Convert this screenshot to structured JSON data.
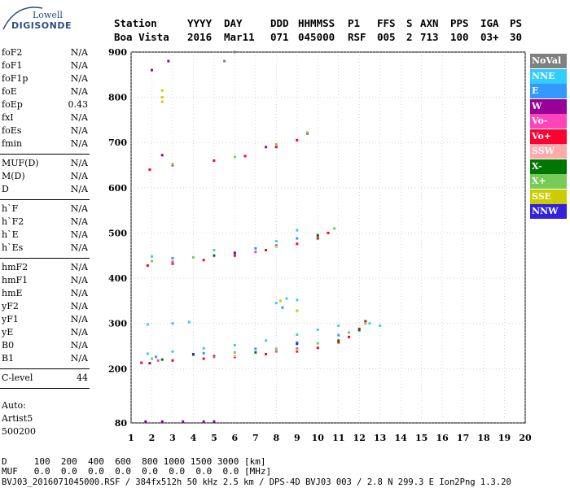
{
  "logo": {
    "line1": "Lowell",
    "line2": "DIGISONDE"
  },
  "header": {
    "row1": [
      "Station",
      "YYYY",
      "DAY",
      "DDD",
      "HHMMSS",
      "P1",
      "FFS",
      "S",
      "AXN",
      "PPS",
      "IGA",
      "PS"
    ],
    "row2": [
      "Boa Vista",
      "2016",
      "Mar11",
      "071",
      "045000",
      "RSF",
      "005",
      "2",
      "713",
      "100",
      "03+",
      "30"
    ]
  },
  "params": {
    "group1": [
      {
        "label": "foF2",
        "value": "N/A"
      },
      {
        "label": "foF1",
        "value": "N/A"
      },
      {
        "label": "foF1p",
        "value": "N/A"
      },
      {
        "label": "foE",
        "value": "N/A"
      },
      {
        "label": "foEp",
        "value": "0.43"
      },
      {
        "label": "fxI",
        "value": "N/A"
      },
      {
        "label": "foEs",
        "value": "N/A"
      },
      {
        "label": "fmin",
        "value": "N/A"
      }
    ],
    "group2": [
      {
        "label": "MUF(D)",
        "value": "N/A"
      },
      {
        "label": "M(D)",
        "value": "N/A"
      },
      {
        "label": "D",
        "value": "N/A"
      }
    ],
    "group3": [
      {
        "label": "h`F",
        "value": "N/A"
      },
      {
        "label": "h`F2",
        "value": "N/A"
      },
      {
        "label": "h`E",
        "value": "N/A"
      },
      {
        "label": "h`Es",
        "value": "N/A"
      }
    ],
    "group4": [
      {
        "label": "hmF2",
        "value": "N/A"
      },
      {
        "label": "hmF1",
        "value": "N/A"
      },
      {
        "label": "hmE",
        "value": "N/A"
      },
      {
        "label": "yF2",
        "value": "N/A"
      },
      {
        "label": "yF1",
        "value": "N/A"
      },
      {
        "label": "yE",
        "value": "N/A"
      },
      {
        "label": "B0",
        "value": "N/A"
      },
      {
        "label": "B1",
        "value": "N/A"
      }
    ],
    "group5": [
      {
        "label": "C-level",
        "value": "44"
      }
    ],
    "auto_lines": [
      "Auto:",
      "Artist5",
      "500200"
    ]
  },
  "legend": [
    {
      "label": "NoVal",
      "color": "#808080"
    },
    {
      "label": "NNE",
      "color": "#33ccff"
    },
    {
      "label": "E",
      "color": "#3399ff"
    },
    {
      "label": "W",
      "color": "#990099"
    },
    {
      "label": "Vo-",
      "color": "#ff44bb"
    },
    {
      "label": "Vo+",
      "color": "#ff0033"
    },
    {
      "label": "SSW",
      "color": "#ffaaaa"
    },
    {
      "label": "X-",
      "color": "#007700"
    },
    {
      "label": "X+",
      "color": "#77cc55"
    },
    {
      "label": "SSE",
      "color": "#cccc00"
    },
    {
      "label": "NNW",
      "color": "#3322dd"
    }
  ],
  "chart_data": {
    "type": "scatter",
    "xlim": [
      1,
      20
    ],
    "x_ticks": [
      1,
      2,
      3,
      4,
      5,
      6,
      7,
      8,
      9,
      10,
      11,
      12,
      13,
      14,
      15,
      16,
      17,
      18,
      19,
      20
    ],
    "ylim": [
      80,
      900
    ],
    "y_ticks": [
      80,
      200,
      300,
      400,
      500,
      600,
      700,
      800,
      900
    ],
    "grid": true,
    "series": [
      {
        "name": "Vo+",
        "points": [
          [
            1.5,
            213
          ],
          [
            3,
            218
          ],
          [
            4.5,
            222
          ],
          [
            6,
            226
          ],
          [
            7.5,
            232
          ],
          [
            9,
            238
          ],
          [
            10,
            246
          ],
          [
            11,
            258
          ],
          [
            11.5,
            270
          ],
          [
            12,
            288
          ],
          [
            12.3,
            305
          ],
          [
            1.8,
            428
          ],
          [
            3,
            432
          ],
          [
            4.5,
            440
          ],
          [
            6,
            450
          ],
          [
            7.5,
            462
          ],
          [
            9,
            476
          ],
          [
            10,
            488
          ],
          [
            10.5,
            500
          ],
          [
            1.9,
            640
          ],
          [
            3,
            650
          ],
          [
            5,
            660
          ],
          [
            6.5,
            670
          ],
          [
            8,
            690
          ],
          [
            9,
            705
          ],
          [
            9.5,
            720
          ]
        ]
      },
      {
        "name": "X+",
        "points": [
          [
            2,
            222
          ],
          [
            4,
            230
          ],
          [
            6,
            236
          ],
          [
            8,
            244
          ],
          [
            10,
            256
          ],
          [
            11.5,
            280
          ],
          [
            12.3,
            300
          ],
          [
            2,
            438
          ],
          [
            4,
            446
          ],
          [
            6,
            456
          ],
          [
            8,
            470
          ],
          [
            10,
            496
          ],
          [
            10.8,
            510
          ],
          [
            3,
            652
          ],
          [
            6,
            668
          ],
          [
            8,
            696
          ],
          [
            9.5,
            722
          ]
        ]
      },
      {
        "name": "X-",
        "points": [
          [
            2.5,
            220
          ],
          [
            5,
            228
          ],
          [
            7,
            236
          ],
          [
            9,
            244
          ],
          [
            11,
            262
          ],
          [
            12,
            285
          ],
          [
            5,
            450
          ],
          [
            8,
            472
          ],
          [
            10,
            494
          ]
        ]
      },
      {
        "name": "NNE",
        "points": [
          [
            1.8,
            233
          ],
          [
            3,
            238
          ],
          [
            4.5,
            245
          ],
          [
            6,
            252
          ],
          [
            7.5,
            262
          ],
          [
            9,
            275
          ],
          [
            10,
            286
          ],
          [
            11,
            295
          ],
          [
            12.5,
            300
          ],
          [
            13,
            295
          ],
          [
            1.8,
            298
          ],
          [
            3,
            300
          ],
          [
            3.8,
            303
          ],
          [
            2,
            448
          ],
          [
            5,
            462
          ],
          [
            8,
            482
          ],
          [
            9,
            506
          ],
          [
            8,
            345
          ],
          [
            8.5,
            355
          ],
          [
            9,
            352
          ]
        ]
      },
      {
        "name": "E",
        "points": [
          [
            2.2,
            226
          ],
          [
            4.5,
            234
          ],
          [
            7,
            244
          ],
          [
            9,
            258
          ],
          [
            11,
            274
          ],
          [
            3,
            444
          ],
          [
            7,
            466
          ],
          [
            9,
            488
          ],
          [
            8.3,
            335
          ]
        ]
      },
      {
        "name": "W",
        "points": [
          [
            1.9,
            212
          ],
          [
            1.7,
            83
          ],
          [
            2.5,
            83
          ],
          [
            3.5,
            83
          ],
          [
            4.5,
            83
          ],
          [
            5,
            83
          ],
          [
            2,
            860
          ],
          [
            2.8,
            880
          ],
          [
            2.5,
            672
          ],
          [
            7.5,
            690
          ]
        ]
      },
      {
        "name": "Vo-",
        "points": [
          [
            2.3,
            218
          ],
          [
            5,
            226
          ],
          [
            8,
            238
          ],
          [
            3,
            436
          ],
          [
            7,
            458
          ]
        ]
      },
      {
        "name": "SSW",
        "points": [
          [
            6,
            228
          ],
          [
            9,
            242
          ],
          [
            8,
            470
          ]
        ]
      },
      {
        "name": "SSE",
        "points": [
          [
            2.5,
            790
          ],
          [
            2.5,
            800
          ],
          [
            2.5,
            815
          ],
          [
            9,
            328
          ],
          [
            8.2,
            350
          ]
        ]
      },
      {
        "name": "NNW",
        "points": [
          [
            4,
            232
          ],
          [
            9,
            255
          ],
          [
            6,
            456
          ]
        ]
      },
      {
        "name": "NoVal",
        "points": [
          [
            5.5,
            880
          ],
          [
            6,
            900
          ]
        ]
      }
    ]
  },
  "footer": {
    "d_row": "D     100  200  400  600  800 1000 1500 3000 [km]",
    "muf_row": "MUF   0.0  0.0  0.0  0.0  0.0  0.0  0.0  0.0 [MHz]",
    "file_line": "BVJ03_2016071045000.RSF / 384fx512h 50 kHz 2.5 km / DPS-4D BVJ03 003 / 2.8 N 299.3 E Ion2Png 1.3.20"
  }
}
